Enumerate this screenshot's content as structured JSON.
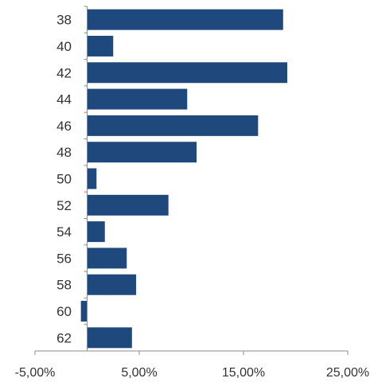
{
  "chart_data": {
    "type": "bar",
    "orientation": "horizontal",
    "categories": [
      "38",
      "40",
      "42",
      "44",
      "46",
      "48",
      "50",
      "52",
      "54",
      "56",
      "58",
      "60",
      "62"
    ],
    "values": [
      18.8,
      2.5,
      19.2,
      9.6,
      16.4,
      10.5,
      0.9,
      7.8,
      1.7,
      3.8,
      4.7,
      -0.6,
      4.3
    ],
    "xlim": [
      -5,
      25
    ],
    "xticks": [
      -5,
      5,
      15,
      25
    ],
    "xtick_labels": [
      "-5,00%",
      "5,00%",
      "15,00%",
      "25,00%"
    ],
    "title": "",
    "xlabel": "",
    "ylabel": "",
    "grid": false,
    "bar_color": "#1f487c",
    "axis_color": "#8c8c8c"
  }
}
